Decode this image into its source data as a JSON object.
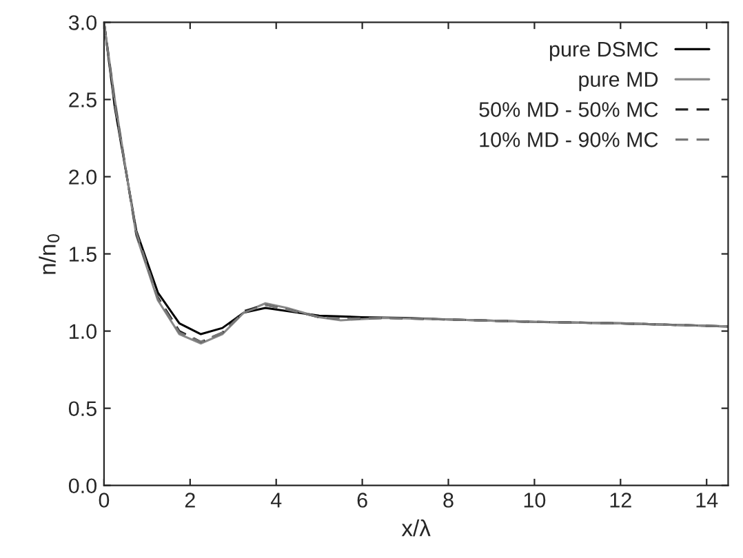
{
  "chart_data": {
    "type": "line",
    "xlabel": "x/λ",
    "ylabel": "n/n$_{0}$",
    "xlim": [
      0,
      14.5
    ],
    "ylim": [
      0,
      3.0
    ],
    "xticks": [
      0,
      2,
      4,
      6,
      8,
      10,
      12,
      14
    ],
    "yticks": [
      {
        "value": 0,
        "label": "0.0"
      },
      0.5,
      {
        "value": 1,
        "label": "1.0"
      },
      1.5,
      {
        "value": 2,
        "label": "2.0"
      },
      2.5,
      {
        "value": 3,
        "label": "3.0"
      }
    ],
    "grid": false,
    "legend": "top right",
    "series": [
      {
        "name": "pure DSMC",
        "color": "#000000",
        "line_style": "solid",
        "x": [
          0,
          0.25,
          0.75,
          1.25,
          1.75,
          2.25,
          2.75,
          3.25,
          3.75,
          4.25,
          5,
          6,
          7,
          8,
          10,
          12,
          14.5
        ],
        "values": [
          3.0,
          2.45,
          1.65,
          1.25,
          1.05,
          0.98,
          1.02,
          1.12,
          1.15,
          1.13,
          1.1,
          1.09,
          1.085,
          1.075,
          1.06,
          1.05,
          1.03
        ]
      },
      {
        "name": "pure MD",
        "color": "#888888",
        "line_style": "solid",
        "x": [
          0,
          0.25,
          0.75,
          1.25,
          1.75,
          2.25,
          2.75,
          3.25,
          3.75,
          4.25,
          5,
          5.5,
          6.5,
          8,
          10,
          12,
          14.5
        ],
        "values": [
          3.0,
          2.5,
          1.62,
          1.2,
          0.98,
          0.92,
          0.98,
          1.12,
          1.18,
          1.15,
          1.09,
          1.07,
          1.085,
          1.075,
          1.06,
          1.05,
          1.03
        ]
      },
      {
        "name": "50% MD - 50% MC",
        "color": "#222222",
        "line_style": "dashed",
        "x": [
          0,
          0.25,
          0.75,
          1.25,
          1.75,
          2.25,
          2.75,
          3.25,
          3.75,
          4.25,
          5,
          5.5,
          6.5,
          8,
          10,
          12,
          14.5
        ],
        "values": [
          3.0,
          2.48,
          1.63,
          1.22,
          1.0,
          0.93,
          0.99,
          1.13,
          1.17,
          1.14,
          1.09,
          1.08,
          1.085,
          1.075,
          1.06,
          1.05,
          1.03
        ]
      },
      {
        "name": "10% MD - 90% MC",
        "color": "#777777",
        "line_style": "dashed",
        "x": [
          0,
          0.25,
          0.75,
          1.25,
          1.75,
          2.25,
          2.75,
          3.25,
          3.75,
          4.25,
          5,
          5.5,
          6.5,
          8,
          10,
          12,
          14.5
        ],
        "values": [
          3.0,
          2.47,
          1.64,
          1.21,
          0.99,
          0.93,
          0.99,
          1.12,
          1.17,
          1.14,
          1.09,
          1.08,
          1.085,
          1.075,
          1.06,
          1.05,
          1.03
        ]
      }
    ]
  }
}
